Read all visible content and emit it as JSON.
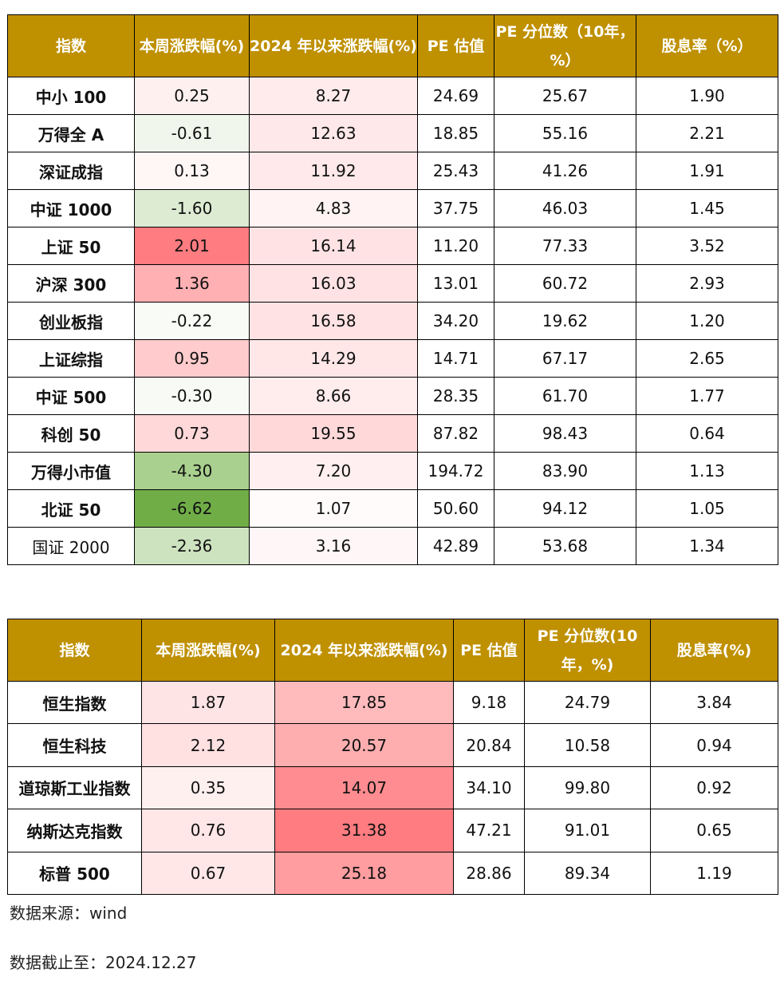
{
  "colors": {
    "header_bg": "#bf9000",
    "header_text": "#ffffff",
    "positive_max": "#ff7c80",
    "negative_max": "#70ad47"
  },
  "table1": {
    "headers": [
      "指数",
      "本周涨跌幅(%)",
      "2024 年以来涨跌幅(%)",
      "PE 估值",
      "PE 分位数（10年，%）",
      "股息率（%）"
    ],
    "rows": [
      {
        "name": "中小 100",
        "weekly": "0.25",
        "ytd": "8.27",
        "pe": "24.69",
        "pe_pct": "25.67",
        "dy": "1.90",
        "weekly_bg": "#fff0f0",
        "ytd_bg": "#ffebec",
        "bold": true
      },
      {
        "name": "万得全 A",
        "weekly": "-0.61",
        "ytd": "12.63",
        "pe": "18.85",
        "pe_pct": "55.16",
        "dy": "2.21",
        "weekly_bg": "#f0f6ec",
        "ytd_bg": "#ffe8e9",
        "bold": true
      },
      {
        "name": "深证成指",
        "weekly": "0.13",
        "ytd": "11.92",
        "pe": "25.43",
        "pe_pct": "41.26",
        "dy": "1.91",
        "weekly_bg": "#fff6f6",
        "ytd_bg": "#ffe9ea",
        "bold": true
      },
      {
        "name": "中证 1000",
        "weekly": "-1.60",
        "ytd": "4.83",
        "pe": "37.75",
        "pe_pct": "46.03",
        "dy": "1.45",
        "weekly_bg": "#dcebd2",
        "ytd_bg": "#fff3f3",
        "bold": true
      },
      {
        "name": "上证 50",
        "weekly": "2.01",
        "ytd": "16.14",
        "pe": "11.20",
        "pe_pct": "77.33",
        "dy": "3.52",
        "weekly_bg": "#ff7c80",
        "ytd_bg": "#ffe3e4",
        "bold": true
      },
      {
        "name": "沪深 300",
        "weekly": "1.36",
        "ytd": "16.03",
        "pe": "13.01",
        "pe_pct": "60.72",
        "dy": "2.93",
        "weekly_bg": "#ffb0b2",
        "ytd_bg": "#ffe3e4",
        "bold": true
      },
      {
        "name": "创业板指",
        "weekly": "-0.22",
        "ytd": "16.58",
        "pe": "34.20",
        "pe_pct": "19.62",
        "dy": "1.20",
        "weekly_bg": "#f9fbf7",
        "ytd_bg": "#ffe2e3",
        "bold": true
      },
      {
        "name": "上证综指",
        "weekly": "0.95",
        "ytd": "14.29",
        "pe": "14.71",
        "pe_pct": "67.17",
        "dy": "2.65",
        "weekly_bg": "#ffcbcc",
        "ytd_bg": "#ffe6e7",
        "bold": true
      },
      {
        "name": "中证 500",
        "weekly": "-0.30",
        "ytd": "8.66",
        "pe": "28.35",
        "pe_pct": "61.70",
        "dy": "1.77",
        "weekly_bg": "#f7faf5",
        "ytd_bg": "#ffeced",
        "bold": true
      },
      {
        "name": "科创 50",
        "weekly": "0.73",
        "ytd": "19.55",
        "pe": "87.82",
        "pe_pct": "98.43",
        "dy": "0.64",
        "weekly_bg": "#ffd8d9",
        "ytd_bg": "#ffd9da",
        "bold": true
      },
      {
        "name": "万得小市值",
        "weekly": "-4.30",
        "ytd": "7.20",
        "pe": "194.72",
        "pe_pct": "83.90",
        "dy": "1.13",
        "weekly_bg": "#a9d08e",
        "ytd_bg": "#ffeff0",
        "bold": true
      },
      {
        "name": "北证 50",
        "weekly": "-6.62",
        "ytd": "1.07",
        "pe": "50.60",
        "pe_pct": "94.12",
        "dy": "1.05",
        "weekly_bg": "#70ad47",
        "ytd_bg": "#fffbfb",
        "bold": true
      },
      {
        "name": "国证 2000",
        "weekly": "-2.36",
        "ytd": "3.16",
        "pe": "42.89",
        "pe_pct": "53.68",
        "dy": "1.34",
        "weekly_bg": "#cde3bf",
        "ytd_bg": "#fff7f7",
        "bold": false
      }
    ]
  },
  "table2": {
    "headers": [
      "指数",
      "本周涨跌幅(%)",
      "2024 年以来涨跌幅(%)",
      "PE 估值",
      "PE 分位数(10 年，%)",
      "股息率(%)"
    ],
    "rows": [
      {
        "name": "恒生指数",
        "weekly": "1.87",
        "ytd": "17.85",
        "pe": "9.18",
        "pe_pct": "24.79",
        "dy": "3.84",
        "weekly_bg": "#ffe4e5",
        "ytd_bg": "#ffbabc",
        "bold": true
      },
      {
        "name": "恒生科技",
        "weekly": "2.12",
        "ytd": "20.57",
        "pe": "20.84",
        "pe_pct": "10.58",
        "dy": "0.94",
        "weekly_bg": "#ffe1e2",
        "ytd_bg": "#ffaeb0",
        "bold": true
      },
      {
        "name": "道琼斯工业指数",
        "weekly": "0.35",
        "ytd": "14.07",
        "pe": "34.10",
        "pe_pct": "99.80",
        "dy": "0.92",
        "weekly_bg": "#fff0f0",
        "ytd_bg": "#ff8c90",
        "bold": true
      },
      {
        "name": "纳斯达克指数",
        "weekly": "0.76",
        "ytd": "31.38",
        "pe": "47.21",
        "pe_pct": "91.01",
        "dy": "0.65",
        "weekly_bg": "#ffe6e7",
        "ytd_bg": "#ff7c80",
        "bold": true
      },
      {
        "name": "标普 500",
        "weekly": "0.67",
        "ytd": "25.18",
        "pe": "28.86",
        "pe_pct": "89.34",
        "dy": "1.19",
        "weekly_bg": "#ffe7e8",
        "ytd_bg": "#ff9da0",
        "bold": true
      }
    ]
  },
  "footer": {
    "source": "数据来源：wind",
    "cutoff": "数据截止至：2024.12.27"
  }
}
